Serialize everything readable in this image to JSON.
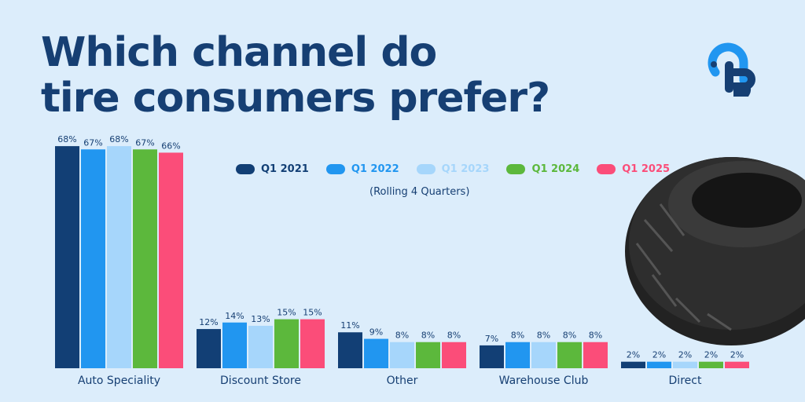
{
  "title_line1": "Which channel do",
  "title_line2": "tire consumers prefer?",
  "logo_text": "iB",
  "chart_data": {
    "type": "bar",
    "title": "Which channel do tire consumers prefer?",
    "subtitle": "(Rolling 4 Quarters)",
    "categories": [
      "Auto Speciality",
      "Discount Store",
      "Other",
      "Warehouse Club",
      "Direct"
    ],
    "series": [
      {
        "name": "Q1 2021",
        "color": "#123f75",
        "values": [
          68,
          12,
          11,
          7,
          2
        ]
      },
      {
        "name": "Q1 2022",
        "color": "#2196f0",
        "values": [
          67,
          14,
          9,
          8,
          2
        ]
      },
      {
        "name": "Q1 2023",
        "color": "#a6d6fb",
        "values": [
          68,
          13,
          8,
          8,
          2
        ]
      },
      {
        "name": "Q1 2024",
        "color": "#5cb83c",
        "values": [
          67,
          15,
          8,
          8,
          2
        ]
      },
      {
        "name": "Q1 2025",
        "color": "#fb4d79",
        "values": [
          66,
          15,
          8,
          8,
          2
        ]
      }
    ],
    "value_suffix": "%",
    "legend_position": "top",
    "grid": false
  }
}
